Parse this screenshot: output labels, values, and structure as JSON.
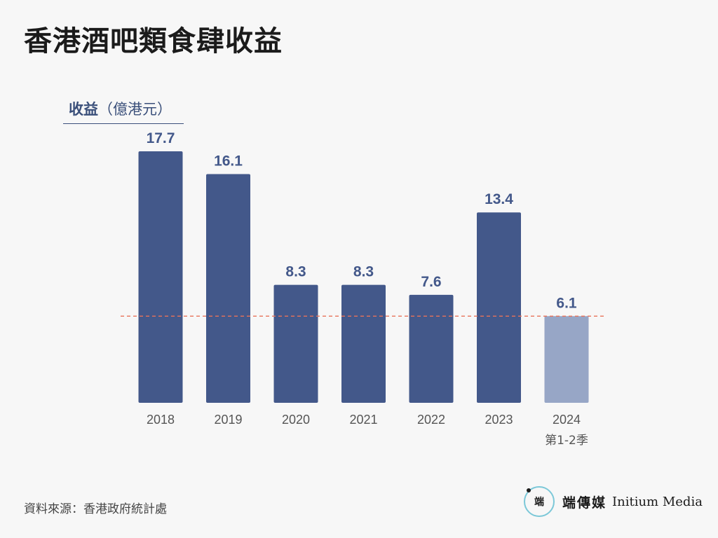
{
  "title": "香港酒吧類食肆收益",
  "y_axis_title": {
    "main": "收益",
    "unit": "（億港元）"
  },
  "chart_data": {
    "type": "bar",
    "categories": [
      "2018",
      "2019",
      "2020",
      "2021",
      "2022",
      "2023",
      "2024"
    ],
    "category_sublabels": [
      "",
      "",
      "",
      "",
      "",
      "",
      "第1-2季"
    ],
    "values": [
      17.7,
      16.1,
      8.3,
      8.3,
      7.6,
      13.4,
      6.1
    ],
    "value_labels": [
      "17.7",
      "16.1",
      "8.3",
      "8.3",
      "7.6",
      "13.4",
      "6.1"
    ],
    "ylim": [
      0,
      17.7
    ],
    "reference_line": {
      "value": 6.1,
      "style": "dashed",
      "color": "#e8735a"
    },
    "colors": {
      "bar": "#43588a",
      "bar_highlight": "#97a6c6",
      "label": "#43588a",
      "tick": "#555555"
    },
    "highlight_index": 6,
    "grid": false
  },
  "source": "資料來源：香港政府統計處",
  "brand": {
    "cn": "端傳媒",
    "en": "Initium Media",
    "logo_char": "端"
  }
}
